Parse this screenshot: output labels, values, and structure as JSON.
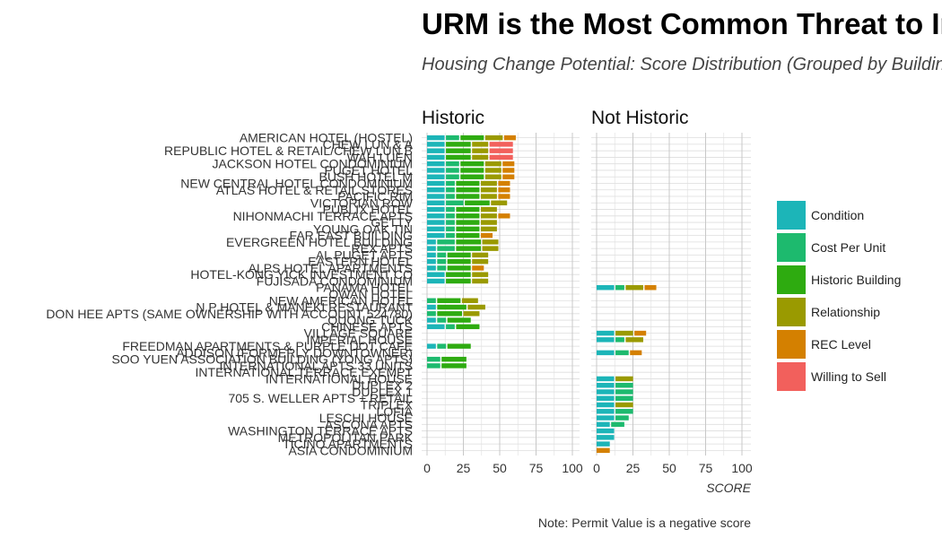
{
  "chart_data": {
    "type": "bar",
    "orientation": "horizontal",
    "stacked": true,
    "title": "URM is the Most Common Threat to Informal Housing",
    "subtitle": "Housing Change Potential: Score Distribution (Grouped by Building)",
    "facets": [
      "Historic",
      "Not Historic"
    ],
    "xlabel": "SCORE",
    "xlim": [
      0,
      100
    ],
    "xticks": [
      0,
      25,
      50,
      75,
      100
    ],
    "caption": "Note: Permit Value is a negative score",
    "legend_position": "right",
    "series_colors": {
      "Condition": "#1cb5b8",
      "Cost Per Unit": "#1dba6e",
      "Historic Building": "#2eab10",
      "Relationship": "#9a9a00",
      "REC Level": "#d48000",
      "Willing to Sell": "#f2605c"
    },
    "series": [
      "Condition",
      "Cost Per Unit",
      "Historic Building",
      "Relationship",
      "REC Level",
      "Willing to Sell"
    ],
    "categories": [
      "AMERICAN HOTEL (HOSTEL)",
      "CHEW LUN & A",
      "REPUBLIC HOTEL & RETAIL/CHEW LUN B",
      "WAH LUEN",
      "JACKSON HOTEL CONDOMINIUM",
      "PUGET HOTEL",
      "BUSH HOTEL M",
      "NEW CENTRAL HOTEL CONDOMINIUM",
      "ATLAS HOTEL & RETAIL STORES",
      "PACIFIC RIM",
      "VICTORIAN ROW",
      "PUBLIX HOTEL",
      "NIHONMACHI TERRACE APTS",
      "GETTY",
      "YOUNG OAK TIN",
      "FAR EAST BUILDING",
      "EVERGREEN HOTEL BUILDING",
      "REX APTS",
      "AL PUGET APTS",
      "EASTERN HOTEL",
      "ALPS HOTEL APARTMENTS",
      "HOTEL-KONG YICK INVESTMENT CO",
      "FUJISADA CONDOMINIUM",
      "PANAMA HOTEL",
      "OWAN HOTEL",
      "NEW AMERICAN HOTEL",
      "N P HOTEL & MANEKI RESTAURANT",
      "DON HEE APTS (SAME OWNERSHIP WITH ACCOUNT 524780)",
      "QUONG TUCK",
      "CHINESE APTS",
      "VILLAGE SQUARE",
      "IMPERIAL HOUSE",
      "FREEDMAN APARTMENTS & PURPLE DOT CAFE",
      "ADDISON (FORMERLY DOWNTOWNER)",
      "SOO YUEN ASSOCIATION BUILDING (YONG APTS)",
      "INTERNATIONAL APTS 33 UNITS",
      "INTERNATIONAL TERRACE EXEMPT",
      "INTERNATIONAL HOUSE",
      "DUPLEX 2",
      "DUPLEX 1",
      "705 S. WELLER APTS + RETAIL",
      "TRIPLEX",
      "LOFIA",
      "LESCHI HOUSE",
      "ASCONA APTS",
      "WASHINGTON TERRACE APTS",
      "METROPOLITAN PARK",
      "TICINO APARTMENTS",
      "ASIA CONDOMINIUM"
    ],
    "bars": [
      {
        "facet": "Historic",
        "row": 0,
        "segments": [
          13,
          10,
          17,
          13,
          9,
          0
        ]
      },
      {
        "facet": "Historic",
        "row": 1,
        "segments": [
          13,
          0,
          18,
          12,
          0,
          17
        ]
      },
      {
        "facet": "Historic",
        "row": 2,
        "segments": [
          13,
          0,
          18,
          12,
          0,
          17
        ]
      },
      {
        "facet": "Historic",
        "row": 3,
        "segments": [
          13,
          0,
          18,
          12,
          0,
          17
        ]
      },
      {
        "facet": "Historic",
        "row": 4,
        "segments": [
          13,
          10,
          17,
          12,
          9,
          0
        ]
      },
      {
        "facet": "Historic",
        "row": 5,
        "segments": [
          13,
          10,
          17,
          12,
          9,
          0
        ]
      },
      {
        "facet": "Historic",
        "row": 6,
        "segments": [
          13,
          10,
          17,
          12,
          9,
          0
        ]
      },
      {
        "facet": "Historic",
        "row": 7,
        "segments": [
          13,
          7,
          17,
          12,
          9,
          0
        ]
      },
      {
        "facet": "Historic",
        "row": 8,
        "segments": [
          13,
          7,
          17,
          12,
          9,
          0
        ]
      },
      {
        "facet": "Historic",
        "row": 9,
        "segments": [
          13,
          7,
          17,
          12,
          9,
          0
        ]
      },
      {
        "facet": "Historic",
        "row": 10,
        "segments": [
          13,
          13,
          18,
          12,
          0,
          0
        ]
      },
      {
        "facet": "Historic",
        "row": 11,
        "segments": [
          13,
          7,
          17,
          12,
          0,
          0
        ]
      },
      {
        "facet": "Historic",
        "row": 12,
        "segments": [
          13,
          7,
          17,
          12,
          9,
          0
        ]
      },
      {
        "facet": "Historic",
        "row": 13,
        "segments": [
          13,
          7,
          17,
          12,
          0,
          0
        ]
      },
      {
        "facet": "Historic",
        "row": 14,
        "segments": [
          13,
          7,
          17,
          12,
          0,
          0
        ]
      },
      {
        "facet": "Historic",
        "row": 15,
        "segments": [
          13,
          7,
          17,
          0,
          9,
          0
        ]
      },
      {
        "facet": "Historic",
        "row": 16,
        "segments": [
          7,
          13,
          18,
          12,
          0,
          0
        ]
      },
      {
        "facet": "Historic",
        "row": 17,
        "segments": [
          7,
          13,
          18,
          12,
          0,
          0
        ]
      },
      {
        "facet": "Historic",
        "row": 18,
        "segments": [
          7,
          7,
          17,
          12,
          0,
          0
        ]
      },
      {
        "facet": "Historic",
        "row": 19,
        "segments": [
          7,
          7,
          17,
          12,
          0,
          0
        ]
      },
      {
        "facet": "Historic",
        "row": 20,
        "segments": [
          7,
          7,
          17,
          0,
          9,
          0
        ]
      },
      {
        "facet": "Historic",
        "row": 21,
        "segments": [
          13,
          0,
          18,
          12,
          0,
          0
        ]
      },
      {
        "facet": "Historic",
        "row": 22,
        "segments": [
          13,
          0,
          18,
          12,
          0,
          0
        ]
      },
      {
        "facet": "Historic",
        "row": 25,
        "segments": [
          0,
          7,
          17,
          12,
          0,
          0
        ]
      },
      {
        "facet": "Historic",
        "row": 26,
        "segments": [
          7,
          0,
          21,
          13,
          0,
          0
        ]
      },
      {
        "facet": "Historic",
        "row": 27,
        "segments": [
          0,
          7,
          18,
          12,
          0,
          0
        ]
      },
      {
        "facet": "Historic",
        "row": 28,
        "segments": [
          7,
          7,
          17,
          0,
          0,
          0
        ]
      },
      {
        "facet": "Historic",
        "row": 29,
        "segments": [
          13,
          7,
          17,
          0,
          0,
          0
        ]
      },
      {
        "facet": "Historic",
        "row": 32,
        "segments": [
          7,
          7,
          17,
          0,
          0,
          0
        ]
      },
      {
        "facet": "Historic",
        "row": 34,
        "segments": [
          0,
          10,
          18,
          0,
          0,
          0
        ]
      },
      {
        "facet": "Historic",
        "row": 35,
        "segments": [
          0,
          10,
          18,
          0,
          0,
          0
        ]
      },
      {
        "facet": "Not Historic",
        "row": 23,
        "segments": [
          13,
          7,
          0,
          13,
          9,
          0
        ]
      },
      {
        "facet": "Not Historic",
        "row": 30,
        "segments": [
          13,
          0,
          0,
          13,
          9,
          0
        ]
      },
      {
        "facet": "Not Historic",
        "row": 31,
        "segments": [
          13,
          7,
          0,
          13,
          0,
          0
        ]
      },
      {
        "facet": "Not Historic",
        "row": 33,
        "segments": [
          13,
          10,
          0,
          0,
          9,
          0
        ]
      },
      {
        "facet": "Not Historic",
        "row": 37,
        "segments": [
          13,
          0,
          0,
          13,
          0,
          0
        ]
      },
      {
        "facet": "Not Historic",
        "row": 38,
        "segments": [
          13,
          13,
          0,
          0,
          0,
          0
        ]
      },
      {
        "facet": "Not Historic",
        "row": 39,
        "segments": [
          13,
          13,
          0,
          0,
          0,
          0
        ]
      },
      {
        "facet": "Not Historic",
        "row": 40,
        "segments": [
          13,
          13,
          0,
          0,
          0,
          0
        ]
      },
      {
        "facet": "Not Historic",
        "row": 41,
        "segments": [
          13,
          0,
          0,
          13,
          0,
          0
        ]
      },
      {
        "facet": "Not Historic",
        "row": 42,
        "segments": [
          13,
          13,
          0,
          0,
          0,
          0
        ]
      },
      {
        "facet": "Not Historic",
        "row": 43,
        "segments": [
          13,
          10,
          0,
          0,
          0,
          0
        ]
      },
      {
        "facet": "Not Historic",
        "row": 44,
        "segments": [
          10,
          10,
          0,
          0,
          0,
          0
        ]
      },
      {
        "facet": "Not Historic",
        "row": 45,
        "segments": [
          13,
          0,
          0,
          0,
          0,
          0
        ]
      },
      {
        "facet": "Not Historic",
        "row": 46,
        "segments": [
          13,
          0,
          0,
          0,
          0,
          0
        ]
      },
      {
        "facet": "Not Historic",
        "row": 47,
        "segments": [
          10,
          0,
          0,
          0,
          0,
          0
        ]
      },
      {
        "facet": "Not Historic",
        "row": 48,
        "segments": [
          0,
          0,
          0,
          0,
          10,
          0
        ]
      }
    ]
  }
}
